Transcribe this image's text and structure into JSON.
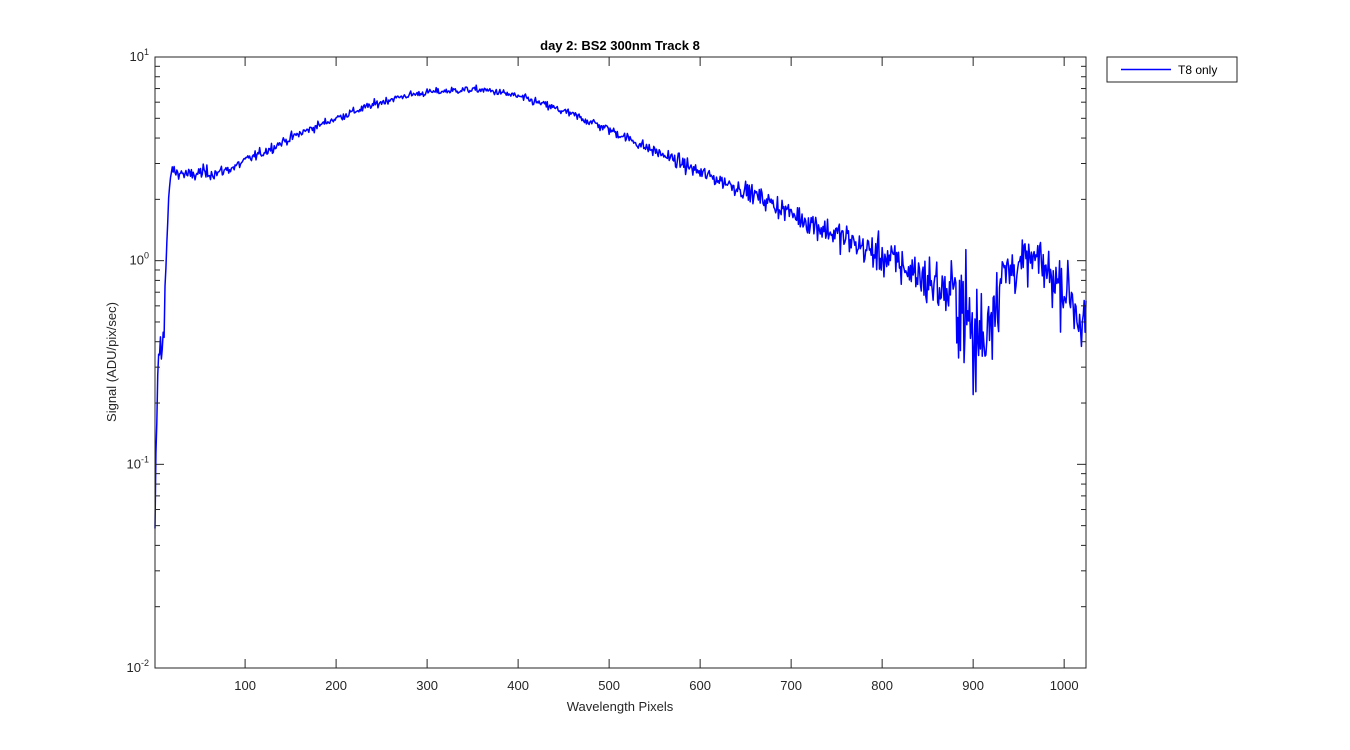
{
  "chart_data": {
    "type": "line",
    "title": "day 2: BS2  300nm  Track 8",
    "xlabel": "Wavelength Pixels",
    "ylabel": "Signal (ADU/pix/sec)",
    "xlim": [
      1,
      1024
    ],
    "ylim": [
      0.01,
      10
    ],
    "yscale": "log",
    "xticks": [
      100,
      200,
      300,
      400,
      500,
      600,
      700,
      800,
      900,
      1000
    ],
    "xtick_labels": [
      "100",
      "200",
      "300",
      "400",
      "500",
      "600",
      "700",
      "800",
      "900",
      "1000"
    ],
    "yticks": [
      {
        "value": 0.01,
        "base": "10",
        "exp": "-2"
      },
      {
        "value": 0.1,
        "base": "10",
        "exp": "-1"
      },
      {
        "value": 1,
        "base": "10",
        "exp": "0"
      },
      {
        "value": 10,
        "base": "10",
        "exp": "1"
      }
    ],
    "grid": false,
    "legend_position": "outside-top-right",
    "series": [
      {
        "name": "T8 only",
        "color": "#0000ff",
        "x": [
          1,
          2,
          4,
          6,
          8,
          10,
          12,
          14,
          16,
          18,
          20,
          25,
          30,
          40,
          50,
          60,
          70,
          80,
          90,
          100,
          120,
          140,
          160,
          180,
          200,
          220,
          240,
          260,
          280,
          300,
          320,
          340,
          360,
          380,
          400,
          420,
          440,
          460,
          480,
          500,
          520,
          540,
          560,
          580,
          600,
          620,
          640,
          660,
          680,
          700,
          720,
          740,
          760,
          780,
          800,
          820,
          840,
          860,
          870,
          880,
          890,
          895,
          900,
          905,
          910,
          915,
          920,
          930,
          940,
          950,
          960,
          970,
          980,
          990,
          1000,
          1010,
          1015,
          1020,
          1024
        ],
        "y": [
          0.035,
          0.09,
          0.25,
          0.4,
          0.3,
          0.5,
          0.7,
          1.2,
          1.8,
          2.6,
          2.8,
          2.7,
          2.7,
          2.6,
          2.7,
          2.7,
          2.7,
          2.8,
          2.9,
          3.1,
          3.4,
          3.8,
          4.2,
          4.6,
          5.0,
          5.4,
          5.8,
          6.2,
          6.5,
          6.7,
          6.8,
          6.9,
          6.9,
          6.7,
          6.4,
          6.0,
          5.6,
          5.2,
          4.8,
          4.4,
          4.0,
          3.6,
          3.3,
          3.0,
          2.7,
          2.5,
          2.3,
          2.1,
          1.9,
          1.7,
          1.55,
          1.4,
          1.28,
          1.15,
          1.05,
          0.95,
          0.85,
          0.75,
          0.7,
          0.65,
          0.6,
          0.5,
          0.35,
          0.45,
          0.4,
          0.5,
          0.6,
          0.8,
          0.9,
          0.95,
          1.0,
          1.0,
          0.9,
          0.8,
          0.75,
          0.65,
          0.55,
          0.5,
          0.45
        ],
        "noise": [
          0.3,
          0.3,
          0.2,
          0.2,
          0.25,
          0.25,
          0.2,
          0.15,
          0.1,
          0.04,
          0.04,
          0.04,
          0.05,
          0.05,
          0.05,
          0.05,
          0.04,
          0.04,
          0.04,
          0.035,
          0.035,
          0.035,
          0.03,
          0.03,
          0.03,
          0.03,
          0.03,
          0.025,
          0.025,
          0.025,
          0.025,
          0.025,
          0.025,
          0.025,
          0.025,
          0.03,
          0.03,
          0.03,
          0.035,
          0.035,
          0.035,
          0.04,
          0.045,
          0.05,
          0.05,
          0.055,
          0.06,
          0.065,
          0.07,
          0.08,
          0.09,
          0.1,
          0.11,
          0.12,
          0.13,
          0.15,
          0.17,
          0.2,
          0.25,
          0.3,
          0.35,
          0.4,
          0.45,
          0.45,
          0.45,
          0.4,
          0.35,
          0.3,
          0.2,
          0.15,
          0.15,
          0.15,
          0.18,
          0.2,
          0.22,
          0.25,
          0.3,
          0.3,
          0.3
        ]
      }
    ]
  }
}
